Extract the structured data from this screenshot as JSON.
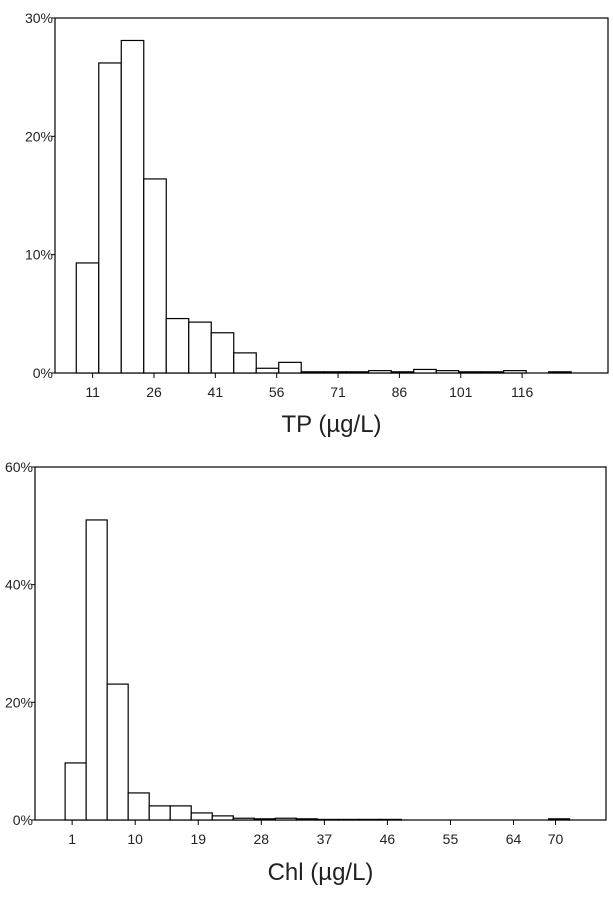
{
  "chart_data": [
    {
      "type": "histogram",
      "xlabel": "TP (µg/L)",
      "bins": [
        7,
        12.5,
        18,
        23.5,
        29,
        34.5,
        40,
        45.5,
        51,
        56.5,
        62,
        67.5,
        73,
        78.5,
        84,
        89.5,
        95,
        100.5,
        106,
        111.5,
        117,
        122.5,
        128
      ],
      "values": [
        9.3,
        26.2,
        28.1,
        16.4,
        4.6,
        4.3,
        3.4,
        1.7,
        0.4,
        0.9,
        0.1,
        0.1,
        0.1,
        0.2,
        0.1,
        0.3,
        0.2,
        0.1,
        0.1,
        0.2,
        0,
        0.1
      ],
      "color": "#ffffff",
      "xlim": [
        1.8,
        137
      ],
      "xticks": [
        11,
        26,
        41,
        56,
        71,
        86,
        101,
        116
      ],
      "ylim": [
        0,
        30
      ],
      "yticks": [
        {
          "value": 0,
          "label": "0%"
        },
        {
          "value": 10,
          "label": "10%"
        },
        {
          "value": 20,
          "label": "20%"
        },
        {
          "value": 30,
          "label": "30%"
        }
      ]
    },
    {
      "type": "histogram",
      "xlabel": "Chl (µg/L)",
      "bins": [
        0,
        3,
        6,
        9,
        12,
        15,
        18,
        21,
        24,
        27,
        30,
        33,
        36,
        39,
        42,
        45,
        48,
        51,
        54,
        57,
        60,
        63,
        66,
        69,
        72
      ],
      "values": [
        9.7,
        51,
        23.1,
        4.6,
        2.4,
        2.4,
        1.2,
        0.7,
        0.3,
        0.2,
        0.3,
        0.2,
        0.1,
        0.1,
        0.1,
        0.1,
        0,
        0,
        0,
        0,
        0,
        0,
        0,
        0.2
      ],
      "color": "#ffffff",
      "xlim": [
        -4.3,
        77.2
      ],
      "xticks": [
        1,
        10,
        19,
        28,
        37,
        46,
        55,
        64,
        70
      ],
      "ylim": [
        0,
        60
      ],
      "yticks": [
        {
          "value": 0,
          "label": "0%"
        },
        {
          "value": 20,
          "label": "20%"
        },
        {
          "value": 40,
          "label": "40%"
        },
        {
          "value": 60,
          "label": "60%"
        }
      ]
    }
  ]
}
